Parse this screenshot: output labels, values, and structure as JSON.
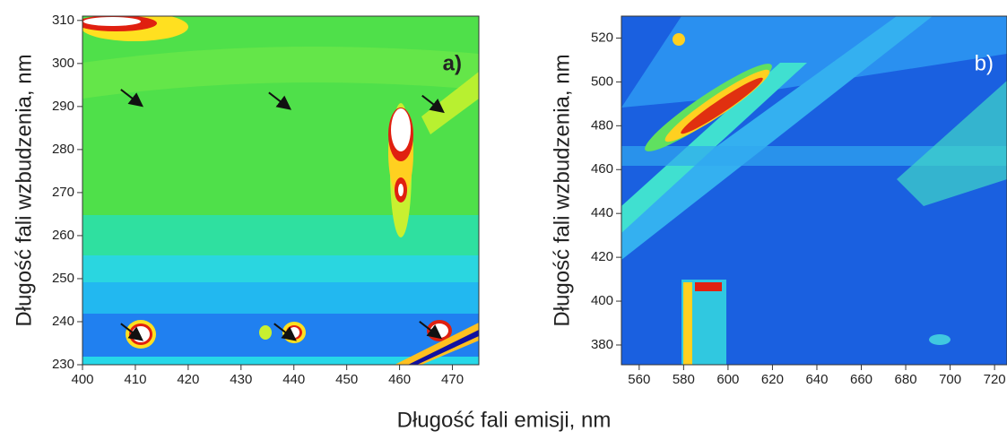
{
  "x_label": "Długość fali emisji,  nm",
  "chart_data": [
    {
      "type": "contour",
      "label": "a)",
      "y_label": "Długość fali wzbudzenia, nm",
      "xlim": [
        400,
        475
      ],
      "xticks": [
        400,
        410,
        420,
        430,
        440,
        450,
        460,
        470
      ],
      "ylim": [
        230,
        311
      ],
      "yticks": [
        230,
        240,
        250,
        260,
        270,
        280,
        290,
        300,
        310
      ],
      "arrows": {
        "x": [
          411,
          439,
          468,
          411,
          440,
          467.5
        ],
        "y": [
          290.4,
          289.7,
          289,
          236,
          236,
          236.5
        ]
      }
    },
    {
      "type": "contour",
      "label": "b)",
      "y_label": "Długość fali wzbudzenia, nm",
      "xlim": [
        552,
        725.6
      ],
      "xticks": [
        560,
        580,
        600,
        620,
        640,
        660,
        680,
        700,
        720
      ],
      "ylim": [
        371,
        530
      ],
      "yticks": [
        380,
        400,
        420,
        440,
        460,
        480,
        500,
        520
      ]
    }
  ]
}
